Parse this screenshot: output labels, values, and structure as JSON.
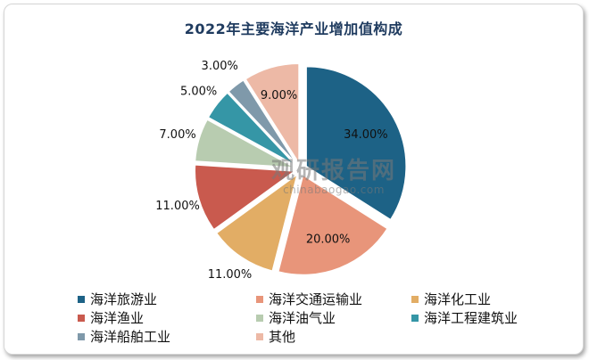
{
  "chart_data": {
    "type": "pie",
    "title": "2022年主要海洋产业增加值构成",
    "categories": [
      "海洋旅游业",
      "海洋交通运输业",
      "海洋化工业",
      "海洋渔业",
      "海洋油气业",
      "海洋工程建筑业",
      "海洋船舶工业",
      "其他"
    ],
    "values": [
      34,
      20,
      11,
      11,
      7,
      5,
      3,
      9
    ],
    "labels": [
      "34.00%",
      "20.00%",
      "11.00%",
      "11.00%",
      "7.00%",
      "5.00%",
      "3.00%",
      "9.00%"
    ],
    "colors": [
      "#1d6286",
      "#e8957a",
      "#e2ad65",
      "#c95a4e",
      "#b8ccb0",
      "#3596a6",
      "#7f99aa",
      "#edb9a6"
    ],
    "legend_position": "bottom"
  },
  "watermark": {
    "main": "观研报告网",
    "sub": "chinabaogao.com"
  }
}
